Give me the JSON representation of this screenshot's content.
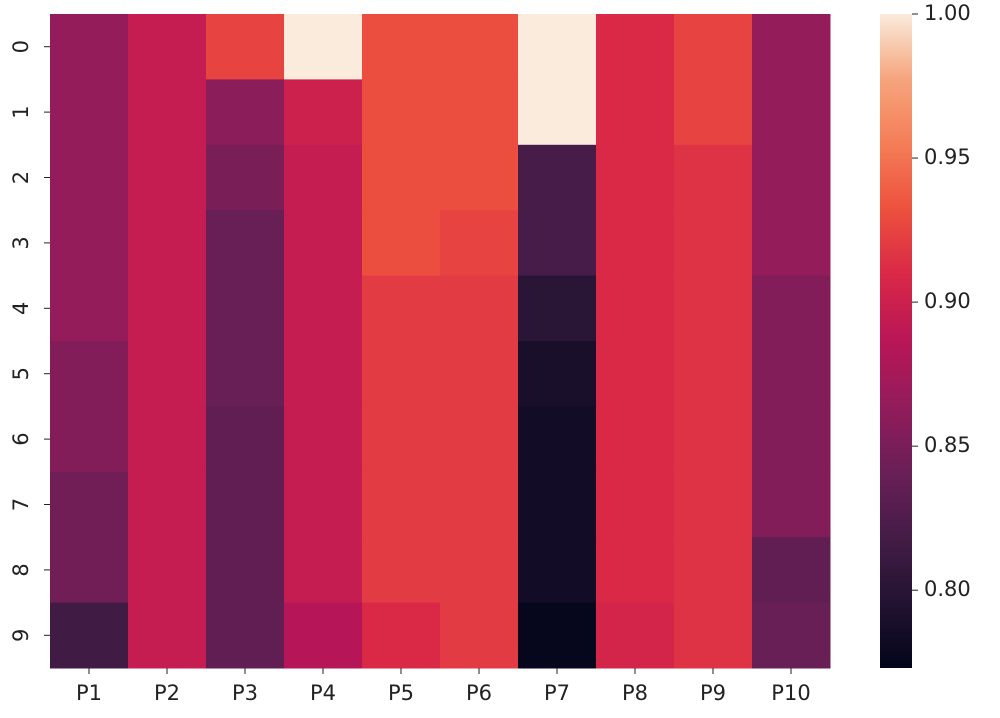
{
  "chart_data": {
    "type": "heatmap",
    "x_categories": [
      "P1",
      "P2",
      "P3",
      "P4",
      "P5",
      "P6",
      "P7",
      "P8",
      "P9",
      "P10"
    ],
    "y_categories": [
      "0",
      "1",
      "2",
      "3",
      "4",
      "5",
      "6",
      "7",
      "8",
      "9"
    ],
    "values": [
      [
        0.865,
        0.895,
        0.925,
        1.0,
        0.93,
        0.93,
        1.0,
        0.91,
        0.925,
        0.865
      ],
      [
        0.865,
        0.895,
        0.86,
        0.9,
        0.93,
        0.93,
        1.0,
        0.91,
        0.925,
        0.865
      ],
      [
        0.865,
        0.895,
        0.85,
        0.895,
        0.93,
        0.93,
        0.82,
        0.91,
        0.915,
        0.865
      ],
      [
        0.865,
        0.895,
        0.84,
        0.895,
        0.93,
        0.925,
        0.82,
        0.91,
        0.915,
        0.865
      ],
      [
        0.865,
        0.895,
        0.84,
        0.895,
        0.92,
        0.92,
        0.8,
        0.91,
        0.915,
        0.855
      ],
      [
        0.855,
        0.895,
        0.84,
        0.895,
        0.92,
        0.92,
        0.79,
        0.91,
        0.915,
        0.855
      ],
      [
        0.855,
        0.895,
        0.835,
        0.895,
        0.92,
        0.92,
        0.785,
        0.91,
        0.915,
        0.855
      ],
      [
        0.845,
        0.895,
        0.835,
        0.895,
        0.92,
        0.92,
        0.785,
        0.91,
        0.915,
        0.855
      ],
      [
        0.845,
        0.895,
        0.835,
        0.895,
        0.92,
        0.92,
        0.785,
        0.91,
        0.915,
        0.835
      ],
      [
        0.815,
        0.895,
        0.835,
        0.885,
        0.91,
        0.92,
        0.775,
        0.905,
        0.915,
        0.84
      ]
    ],
    "colormap": [
      "#03051a",
      "#221331",
      "#451c47",
      "#6a1f56",
      "#921c5b",
      "#b91657",
      "#d92847",
      "#ed503e",
      "#f47d57",
      "#f6a47c",
      "#faebdd"
    ],
    "clim": [
      0.773,
      1.0
    ],
    "cticks": [
      {
        "value": 0.8,
        "label": "0.80"
      },
      0.85,
      {
        "value": 0.9,
        "label": "0.90"
      },
      0.95,
      {
        "value": 1.0,
        "label": "1.00"
      }
    ]
  }
}
